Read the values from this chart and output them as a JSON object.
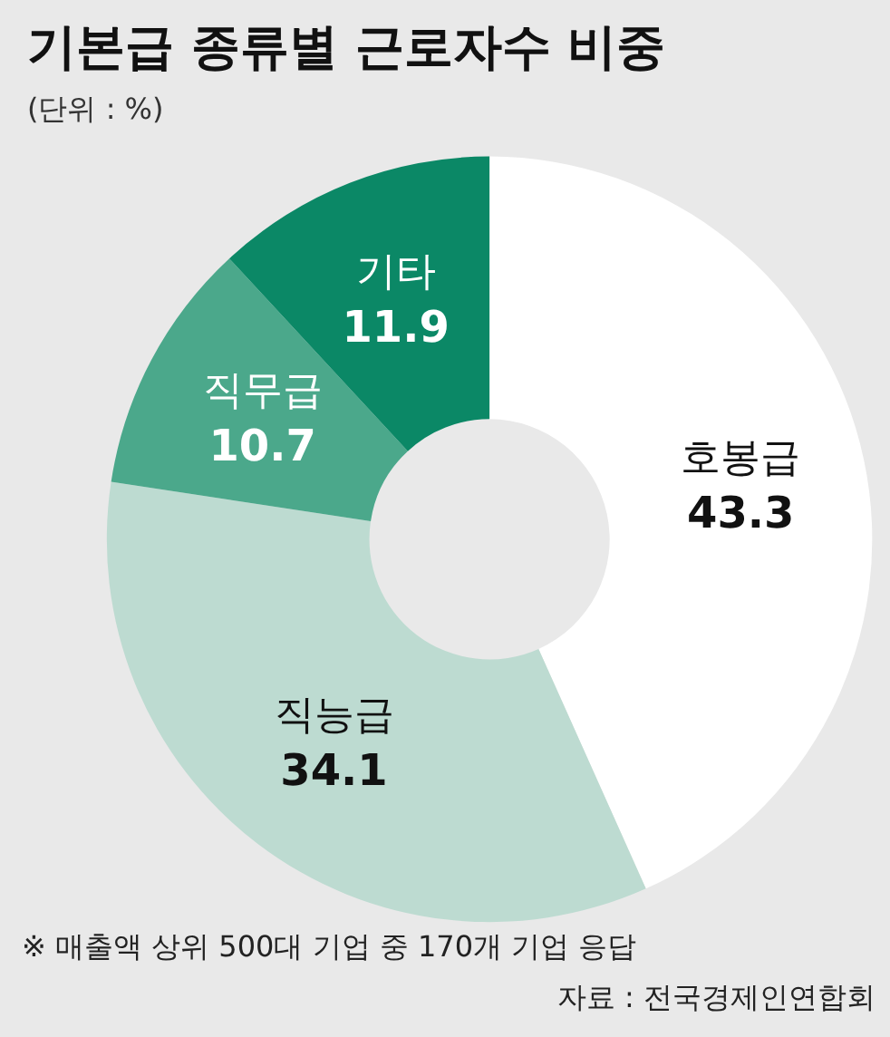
{
  "chart_data": {
    "type": "donut",
    "title": "기본급 종류별 근로자수 비중",
    "subtitle": "(단위 : %)",
    "categories": [
      "호봉급",
      "직능급",
      "직무급",
      "기타"
    ],
    "values": [
      43.3,
      34.1,
      10.7,
      11.9
    ],
    "colors": [
      "#ffffff",
      "#bddbd1",
      "#4ba88b",
      "#0b8866"
    ],
    "data_labels": true,
    "legend": false,
    "annotations": [
      "※ 매출액 상위 500대 기업 중 170개 기업 응답",
      "자료 : 전국경제인연합회"
    ]
  }
}
